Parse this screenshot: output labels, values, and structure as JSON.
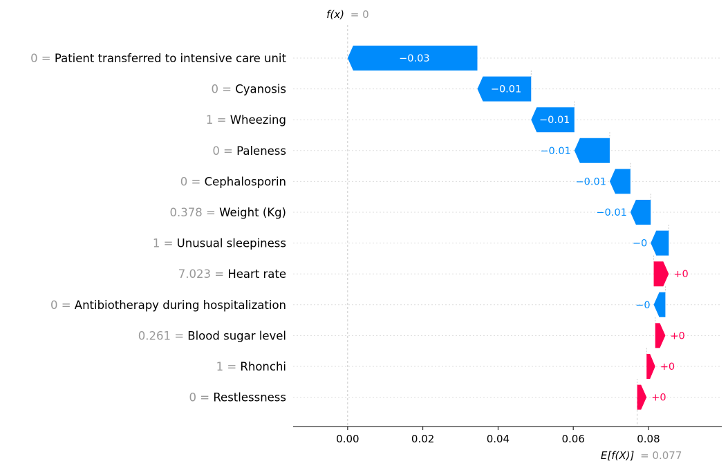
{
  "chart_data": {
    "type": "waterfall",
    "base_value": 0.077,
    "output_value": 0,
    "base_label": "E[f(X)]",
    "base_value_text": "= 0.077",
    "output_label": "f(x)",
    "output_value_text": "= 0",
    "xlim": [
      -0.0145,
      0.0995
    ],
    "xticks": [
      0.0,
      0.02,
      0.04,
      0.06,
      0.08
    ],
    "xtick_labels": [
      "0.00",
      "0.02",
      "0.04",
      "0.06",
      "0.08"
    ],
    "colors": {
      "negative": "#008bfb",
      "positive": "#ff0051",
      "feature_value": "#999999"
    },
    "features": [
      {
        "value": "0",
        "name": "Patient transferred to intensive care unit",
        "start": 0.0345,
        "end": 0.0,
        "label": "−0.03"
      },
      {
        "value": "0",
        "name": "Cyanosis",
        "start": 0.0488,
        "end": 0.0345,
        "label": "−0.01"
      },
      {
        "value": "1",
        "name": "Wheezing",
        "start": 0.0603,
        "end": 0.0488,
        "label": "−0.01"
      },
      {
        "value": "0",
        "name": "Paleness",
        "start": 0.0697,
        "end": 0.0603,
        "label": "−0.01"
      },
      {
        "value": "0",
        "name": "Cephalosporin",
        "start": 0.0752,
        "end": 0.0697,
        "label": "−0.01"
      },
      {
        "value": "0.378",
        "name": "Weight (Kg)",
        "start": 0.0806,
        "end": 0.0752,
        "label": "−0.01"
      },
      {
        "value": "1",
        "name": "Unusual sleepiness",
        "start": 0.0854,
        "end": 0.0806,
        "label": "−0"
      },
      {
        "value": "7.023",
        "name": "Heart rate",
        "start": 0.0814,
        "end": 0.0854,
        "label": "+0"
      },
      {
        "value": "0",
        "name": "Antibiotherapy during hospitalization",
        "start": 0.0845,
        "end": 0.0814,
        "label": "−0"
      },
      {
        "value": "0.261",
        "name": "Blood sugar level",
        "start": 0.0818,
        "end": 0.0845,
        "label": "+0"
      },
      {
        "value": "1",
        "name": "Rhonchi",
        "start": 0.0795,
        "end": 0.0818,
        "label": "+0"
      },
      {
        "value": "0",
        "name": "Restlessness",
        "start": 0.077,
        "end": 0.0795,
        "label": "+0"
      }
    ]
  }
}
